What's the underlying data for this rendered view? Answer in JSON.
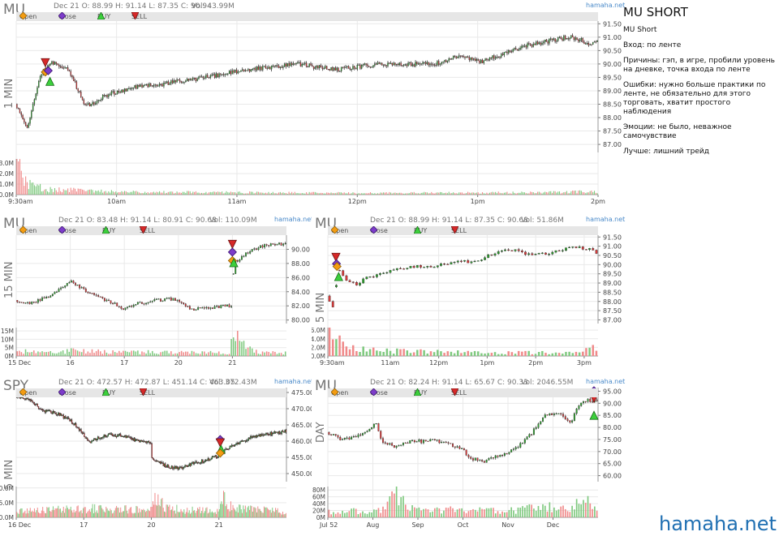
{
  "colors": {
    "up": "#2e9e2e",
    "down": "#d63b3b",
    "wick": "#222222",
    "vol_up": "#7fc97f",
    "vol_down": "#f08a8a",
    "grid": "#e9e9e9",
    "axis": "#777777",
    "open": "#f39c12",
    "close": "#7d3cc9",
    "buy": "#3ccf3c",
    "sell": "#d62828"
  },
  "legend": {
    "open": "Open",
    "close": "Close",
    "buy": "BUY",
    "sell": "SELL"
  },
  "notes": {
    "title": "MU SHORT",
    "subtitle": "MU Short",
    "entry": "Вход: по ленте",
    "reasons": "Причины: гэп, в игре, пробили уровень на дневке, точка входа по ленте",
    "errors": "Ошибки: нужно больше практики по ленте, не обязательно для этого торговать, хватит простого наблюдения",
    "emotions": "Эмоции: не было, неважное самочувствие",
    "better": "Лучше: лишний трейд"
  },
  "brand": "hamaha.net",
  "chart_data": [
    {
      "id": "p1",
      "type": "candlestick",
      "symbol": "MU",
      "timeframe": "1 MIN",
      "ohlc_text": "Dec 21 O: 88.99 H: 91.14 L: 87.35 C: 90.94",
      "vol_text": "Vol: 43.99M",
      "watermark": "hamaha.net",
      "ylim": [
        86.7,
        91.6
      ],
      "yticks": [
        "91.50",
        "91.00",
        "90.50",
        "90.00",
        "89.50",
        "89.00",
        "88.50",
        "88.00",
        "87.50",
        "87.00"
      ],
      "vol_ylim": [
        0,
        3.4
      ],
      "vol_ticks": [
        "3.0M",
        "2.0M",
        "1.0M",
        "0.0M"
      ],
      "xticks": [
        "9:30am",
        "10am",
        "11am",
        "12pm",
        "1pm",
        "2pm"
      ],
      "xtick_pos": [
        0,
        0.1724,
        0.3793,
        0.5862,
        0.7931,
        1.0
      ],
      "n_bars": 400,
      "path": [
        [
          0,
          88.5
        ],
        [
          0.02,
          87.6
        ],
        [
          0.04,
          89.5
        ],
        [
          0.06,
          90.1
        ],
        [
          0.09,
          89.8
        ],
        [
          0.12,
          88.4
        ],
        [
          0.16,
          88.9
        ],
        [
          0.2,
          89.1
        ],
        [
          0.3,
          89.4
        ],
        [
          0.4,
          89.8
        ],
        [
          0.48,
          90.0
        ],
        [
          0.55,
          89.8
        ],
        [
          0.62,
          90.0
        ],
        [
          0.72,
          90.0
        ],
        [
          0.76,
          90.3
        ],
        [
          0.8,
          90.1
        ],
        [
          0.88,
          90.7
        ],
        [
          0.95,
          91.0
        ],
        [
          0.97,
          90.9
        ],
        [
          0.985,
          90.7
        ],
        [
          1.0,
          90.95
        ]
      ],
      "volprof": [
        [
          0,
          3.0
        ],
        [
          0.015,
          1.2
        ],
        [
          0.05,
          0.5
        ],
        [
          0.2,
          0.25
        ],
        [
          0.6,
          0.15
        ],
        [
          0.9,
          0.2
        ],
        [
          1.0,
          0.3
        ]
      ],
      "markers": [
        {
          "type": "sell",
          "x": 0.05,
          "y": 90.05
        },
        {
          "type": "open",
          "x": 0.05,
          "y": 89.7
        },
        {
          "type": "close",
          "x": 0.055,
          "y": 89.75
        },
        {
          "type": "buy",
          "x": 0.058,
          "y": 89.35
        }
      ]
    },
    {
      "id": "p2",
      "type": "candlestick",
      "symbol": "MU",
      "timeframe": "15 MIN",
      "ohlc_text": "Dec 21 O: 83.48 H: 91.14 L: 80.91 C: 90.68",
      "vol_text": "Vol: 110.09M",
      "watermark": "hamaha.net",
      "ylim": [
        79.5,
        92.0
      ],
      "yticks": [
        "90.00",
        "88.00",
        "86.00",
        "84.00",
        "82.00",
        "80.00"
      ],
      "vol_ylim": [
        0,
        17
      ],
      "vol_ticks": [
        "15M",
        "10M",
        "5M",
        "0M"
      ],
      "xticks": [
        "15 Dec",
        "16",
        "17",
        "20",
        "21"
      ],
      "xtick_pos": [
        0,
        0.2,
        0.4,
        0.6,
        0.8
      ],
      "n_bars": 130,
      "path": [
        [
          0,
          82.8
        ],
        [
          0.05,
          82.4
        ],
        [
          0.1,
          83.0
        ],
        [
          0.15,
          84.0
        ],
        [
          0.2,
          85.6
        ],
        [
          0.25,
          84.3
        ],
        [
          0.3,
          83.3
        ],
        [
          0.35,
          82.5
        ],
        [
          0.38,
          82.0
        ],
        [
          0.4,
          81.6
        ],
        [
          0.45,
          82.3
        ],
        [
          0.52,
          82.8
        ],
        [
          0.58,
          83.0
        ],
        [
          0.6,
          82.8
        ],
        [
          0.65,
          81.5
        ],
        [
          0.7,
          81.6
        ],
        [
          0.75,
          81.9
        ],
        [
          0.8,
          82.0
        ],
        [
          0.805,
          88.0
        ],
        [
          0.85,
          89.5
        ],
        [
          0.9,
          90.3
        ],
        [
          0.95,
          90.8
        ],
        [
          1.0,
          90.7
        ]
      ],
      "volprof": [
        [
          0,
          3
        ],
        [
          0.1,
          2
        ],
        [
          0.2,
          3
        ],
        [
          0.4,
          2.5
        ],
        [
          0.6,
          2
        ],
        [
          0.79,
          2
        ],
        [
          0.8,
          14
        ],
        [
          0.85,
          5
        ],
        [
          0.9,
          2
        ],
        [
          1.0,
          2
        ]
      ],
      "markers": [
        {
          "type": "sell",
          "x": 0.8,
          "y": 90.7
        },
        {
          "type": "close",
          "x": 0.8,
          "y": 89.6
        },
        {
          "type": "open",
          "x": 0.8,
          "y": 88.4
        },
        {
          "type": "buy",
          "x": 0.805,
          "y": 88.1
        }
      ]
    },
    {
      "id": "p3",
      "type": "candlestick",
      "symbol": "MU",
      "timeframe": "5 MIN",
      "ohlc_text": "Dec 21 O: 88.99 H: 91.14 L: 87.35 C: 90.68",
      "vol_text": "Vol: 51.86M",
      "watermark": "hamaha.net",
      "ylim": [
        86.8,
        91.6
      ],
      "yticks": [
        "91.50",
        "91.00",
        "90.50",
        "90.00",
        "89.50",
        "89.00",
        "88.50",
        "88.00",
        "87.50",
        "87.00"
      ],
      "vol_ylim": [
        0,
        6.6
      ],
      "vol_ticks": [
        "6.0M",
        "4.0M",
        "2.0M",
        "0.0M"
      ],
      "xticks": [
        "9:30am",
        "11am",
        "12pm",
        "1pm",
        "2pm",
        "3pm"
      ],
      "xtick_pos": [
        0,
        0.2308,
        0.4103,
        0.5897,
        0.7692,
        0.9487
      ],
      "n_bars": 80,
      "path": [
        [
          0,
          88.3
        ],
        [
          0.02,
          87.6
        ],
        [
          0.04,
          89.8
        ],
        [
          0.06,
          89.3
        ],
        [
          0.1,
          88.9
        ],
        [
          0.15,
          89.3
        ],
        [
          0.2,
          89.6
        ],
        [
          0.3,
          89.9
        ],
        [
          0.4,
          89.9
        ],
        [
          0.45,
          90.1
        ],
        [
          0.55,
          90.2
        ],
        [
          0.65,
          90.8
        ],
        [
          0.7,
          90.8
        ],
        [
          0.75,
          90.5
        ],
        [
          0.8,
          90.6
        ],
        [
          0.9,
          90.9
        ],
        [
          0.95,
          90.9
        ],
        [
          1.0,
          90.65
        ]
      ],
      "volprof": [
        [
          0,
          5.5
        ],
        [
          0.03,
          3.5
        ],
        [
          0.08,
          2
        ],
        [
          0.2,
          1.2
        ],
        [
          0.6,
          0.7
        ],
        [
          0.9,
          0.9
        ],
        [
          1.0,
          2.0
        ]
      ],
      "markers": [
        {
          "type": "sell",
          "x": 0.03,
          "y": 90.4
        },
        {
          "type": "close",
          "x": 0.032,
          "y": 90.05
        },
        {
          "type": "open",
          "x": 0.034,
          "y": 89.9
        },
        {
          "type": "buy",
          "x": 0.04,
          "y": 89.35
        }
      ]
    },
    {
      "id": "p4",
      "type": "candlestick",
      "symbol": "SPY",
      "timeframe": "5 MIN",
      "ohlc_text": "Dec 21 O: 472.57 H: 472.87 L: 451.14 C: 463.05",
      "vol_text": "Vol: 372.43M",
      "watermark": "hamaha.net",
      "ylim": [
        447.5,
        476.5
      ],
      "yticks": [
        "475.00",
        "470.00",
        "465.00",
        "460.00",
        "455.00",
        "450.00"
      ],
      "vol_ylim": [
        0,
        10.5
      ],
      "vol_ticks": [
        "10.0M",
        "5.0M",
        "0.0M"
      ],
      "xticks": [
        "16 Dec",
        "17",
        "20",
        "21"
      ],
      "xtick_pos": [
        0,
        0.25,
        0.5,
        0.75
      ],
      "n_bars": 260,
      "path": [
        [
          0,
          474.0
        ],
        [
          0.05,
          472.5
        ],
        [
          0.1,
          469.5
        ],
        [
          0.15,
          468.5
        ],
        [
          0.2,
          466.5
        ],
        [
          0.25,
          462.0
        ],
        [
          0.27,
          459.5
        ],
        [
          0.3,
          461.0
        ],
        [
          0.35,
          462.0
        ],
        [
          0.4,
          461.5
        ],
        [
          0.45,
          460.0
        ],
        [
          0.5,
          459.5
        ],
        [
          0.5,
          455.0
        ],
        [
          0.55,
          452.5
        ],
        [
          0.6,
          451.5
        ],
        [
          0.65,
          453.0
        ],
        [
          0.7,
          454.0
        ],
        [
          0.75,
          455.5
        ],
        [
          0.78,
          457.5
        ],
        [
          0.85,
          460.5
        ],
        [
          0.9,
          461.8
        ],
        [
          0.95,
          462.5
        ],
        [
          1.0,
          463.0
        ]
      ],
      "volprof": [
        [
          0,
          2
        ],
        [
          0.25,
          3
        ],
        [
          0.5,
          2.5
        ],
        [
          0.52,
          8
        ],
        [
          0.55,
          3
        ],
        [
          0.75,
          2
        ],
        [
          0.77,
          7
        ],
        [
          0.8,
          3
        ],
        [
          1.0,
          2
        ]
      ],
      "markers": [
        {
          "type": "close",
          "x": 0.755,
          "y": 460.5
        },
        {
          "type": "sell",
          "x": 0.755,
          "y": 459.5
        },
        {
          "type": "buy",
          "x": 0.758,
          "y": 457.5
        },
        {
          "type": "open",
          "x": 0.755,
          "y": 456.3
        }
      ]
    },
    {
      "id": "p5",
      "type": "candlestick",
      "symbol": "MU",
      "timeframe": "DAY",
      "ohlc_text": "Dec 21 O: 82.24 H: 91.14 L: 65.67 C: 90.33",
      "vol_text": "Vol: 2046.55M",
      "watermark": "hamaha.net",
      "ylim": [
        57.5,
        96.5
      ],
      "yticks": [
        "95.00",
        "90.00",
        "85.00",
        "80.00",
        "75.00",
        "70.00",
        "65.00",
        "60.00"
      ],
      "vol_ylim": [
        0,
        90
      ],
      "vol_ticks": [
        "80M",
        "60M",
        "40M",
        "20M",
        "0M"
      ],
      "xticks": [
        "Jul 52",
        "Aug",
        "Sep",
        "Oct",
        "Nov",
        "Dec"
      ],
      "xtick_pos": [
        0,
        0.1667,
        0.3333,
        0.5,
        0.6667,
        0.8333
      ],
      "n_bars": 120,
      "path": [
        [
          0,
          78.0
        ],
        [
          0.05,
          75.0
        ],
        [
          0.1,
          76.0
        ],
        [
          0.15,
          79.0
        ],
        [
          0.18,
          82.0
        ],
        [
          0.2,
          74.0
        ],
        [
          0.25,
          72.0
        ],
        [
          0.3,
          74.0
        ],
        [
          0.4,
          74.5
        ],
        [
          0.45,
          73.0
        ],
        [
          0.5,
          71.0
        ],
        [
          0.52,
          67.5
        ],
        [
          0.58,
          66.0
        ],
        [
          0.65,
          69.0
        ],
        [
          0.7,
          72.0
        ],
        [
          0.75,
          77.0
        ],
        [
          0.8,
          85.0
        ],
        [
          0.85,
          85.5
        ],
        [
          0.88,
          84.0
        ],
        [
          0.9,
          82.0
        ],
        [
          0.92,
          87.5
        ],
        [
          0.94,
          90.0
        ],
        [
          0.96,
          91.5
        ],
        [
          1.0,
          90.5
        ]
      ],
      "volprof": [
        [
          0,
          15
        ],
        [
          0.2,
          20
        ],
        [
          0.25,
          70
        ],
        [
          0.3,
          25
        ],
        [
          0.5,
          20
        ],
        [
          0.7,
          20
        ],
        [
          0.8,
          30
        ],
        [
          0.9,
          25
        ],
        [
          0.95,
          60
        ],
        [
          1.0,
          20
        ]
      ],
      "markers": [
        {
          "type": "close",
          "x": 0.985,
          "y": 95.2
        },
        {
          "type": "open",
          "x": 0.985,
          "y": 93.5
        },
        {
          "type": "sell",
          "x": 0.985,
          "y": 92.0
        },
        {
          "type": "buy",
          "x": 0.985,
          "y": 85.0
        }
      ]
    }
  ]
}
